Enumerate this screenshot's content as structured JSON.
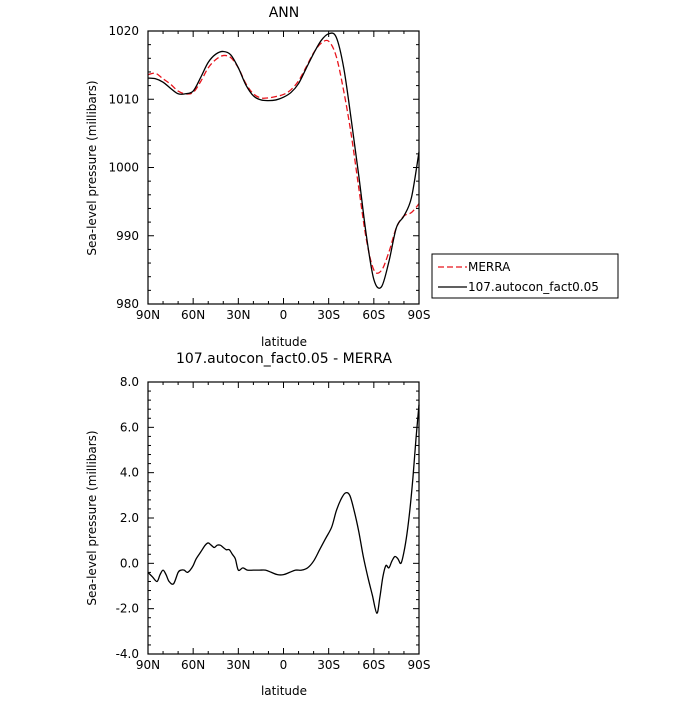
{
  "chart_data": [
    {
      "type": "line",
      "title": "ANN",
      "xlabel": "latitude",
      "ylabel": "Sea-level pressure (millibars)",
      "x_ticks": [
        {
          "value": 90,
          "label": "90N"
        },
        {
          "value": 60,
          "label": "60N"
        },
        {
          "value": 30,
          "label": "30N"
        },
        {
          "value": 0,
          "label": "0"
        },
        {
          "value": -30,
          "label": "30S"
        },
        {
          "value": -60,
          "label": "60S"
        },
        {
          "value": -90,
          "label": "90S"
        }
      ],
      "xlim": [
        90,
        -90
      ],
      "ylim": [
        980,
        1020
      ],
      "y_ticks": [
        {
          "value": 980,
          "label": "980"
        },
        {
          "value": 990,
          "label": "990"
        },
        {
          "value": 1000,
          "label": "1000"
        },
        {
          "value": 1010,
          "label": "1010"
        },
        {
          "value": 1020,
          "label": "1020"
        }
      ],
      "legend_position": "outside-right",
      "series": [
        {
          "name": "MERRA",
          "color": "#e8141c",
          "dash": "dashed",
          "x": [
            90,
            85,
            80,
            75,
            70,
            65,
            60,
            55,
            50,
            45,
            40,
            35,
            30,
            25,
            20,
            15,
            10,
            5,
            0,
            -5,
            -10,
            -15,
            -20,
            -25,
            -30,
            -35,
            -40,
            -45,
            -50,
            -55,
            -60,
            -65,
            -70,
            -75,
            -80,
            -85,
            -90
          ],
          "y": [
            1013.6,
            1013.8,
            1013.0,
            1012.2,
            1011.2,
            1010.8,
            1011.0,
            1012.6,
            1014.6,
            1015.8,
            1016.4,
            1016.1,
            1014.6,
            1012.3,
            1010.8,
            1010.2,
            1010.2,
            1010.4,
            1010.7,
            1011.4,
            1012.7,
            1014.7,
            1016.8,
            1018.2,
            1018.5,
            1016.3,
            1011.2,
            1004.8,
            997.0,
            989.5,
            985.0,
            984.9,
            987.6,
            991.2,
            992.9,
            993.4,
            994.7
          ]
        },
        {
          "name": "107.autocon_fact0.05",
          "color": "#000000",
          "dash": "solid",
          "x": [
            90,
            85,
            80,
            75,
            70,
            65,
            60,
            55,
            50,
            45,
            40,
            35,
            30,
            25,
            20,
            15,
            10,
            5,
            0,
            -5,
            -10,
            -15,
            -20,
            -25,
            -30,
            -35,
            -40,
            -45,
            -50,
            -55,
            -60,
            -65,
            -70,
            -75,
            -80,
            -85,
            -90
          ],
          "y": [
            1013.1,
            1013.0,
            1012.5,
            1011.6,
            1010.8,
            1010.8,
            1011.2,
            1013.2,
            1015.4,
            1016.6,
            1017.0,
            1016.5,
            1014.6,
            1012.1,
            1010.5,
            1009.9,
            1009.8,
            1009.9,
            1010.3,
            1011.0,
            1012.3,
            1014.5,
            1016.7,
            1018.6,
            1019.6,
            1019.1,
            1014.6,
            1007.0,
            998.8,
            990.1,
            983.6,
            982.5,
            986.2,
            991.2,
            992.9,
            995.6,
            1002.3
          ]
        }
      ]
    },
    {
      "type": "line",
      "title": "107.autocon_fact0.05 - MERRA",
      "xlabel": "latitude",
      "ylabel": "Sea-level pressure (millibars)",
      "x_ticks": [
        {
          "value": 90,
          "label": "90N"
        },
        {
          "value": 60,
          "label": "60N"
        },
        {
          "value": 30,
          "label": "30N"
        },
        {
          "value": 0,
          "label": "0"
        },
        {
          "value": -30,
          "label": "30S"
        },
        {
          "value": -60,
          "label": "60S"
        },
        {
          "value": -90,
          "label": "90S"
        }
      ],
      "xlim": [
        90,
        -90
      ],
      "ylim": [
        -4,
        8
      ],
      "y_ticks": [
        {
          "value": -4,
          "label": "-4.0"
        },
        {
          "value": -2,
          "label": "-2.0"
        },
        {
          "value": 0,
          "label": "0.0"
        },
        {
          "value": 2,
          "label": "2.0"
        },
        {
          "value": 4,
          "label": "4.0"
        },
        {
          "value": 6,
          "label": "6.0"
        },
        {
          "value": 8,
          "label": "8.0"
        }
      ],
      "series": [
        {
          "color": "#000000",
          "dash": "solid",
          "x": [
            90,
            87,
            84,
            82,
            80,
            78,
            76,
            73,
            70,
            68,
            66,
            64,
            62,
            60,
            58,
            55,
            52,
            50,
            48,
            46,
            44,
            42,
            40,
            38,
            36,
            34,
            32,
            30,
            27,
            24,
            20,
            16,
            12,
            8,
            4,
            0,
            -4,
            -8,
            -12,
            -16,
            -20,
            -24,
            -28,
            -32,
            -35,
            -38,
            -41,
            -44,
            -47,
            -50,
            -53,
            -56,
            -59,
            -62,
            -64,
            -66,
            -68,
            -70,
            -72,
            -74,
            -76,
            -78,
            -80,
            -82,
            -84,
            -86,
            -88,
            -90
          ],
          "y": [
            -0.4,
            -0.6,
            -0.8,
            -0.5,
            -0.3,
            -0.5,
            -0.8,
            -0.9,
            -0.4,
            -0.3,
            -0.3,
            -0.4,
            -0.3,
            -0.1,
            0.2,
            0.5,
            0.8,
            0.9,
            0.8,
            0.7,
            0.8,
            0.8,
            0.7,
            0.6,
            0.6,
            0.4,
            0.2,
            -0.3,
            -0.2,
            -0.3,
            -0.3,
            -0.3,
            -0.3,
            -0.4,
            -0.5,
            -0.5,
            -0.4,
            -0.3,
            -0.3,
            -0.2,
            0.1,
            0.6,
            1.1,
            1.6,
            2.3,
            2.8,
            3.1,
            3.0,
            2.3,
            1.4,
            0.3,
            -0.6,
            -1.4,
            -2.2,
            -1.5,
            -0.6,
            -0.1,
            -0.2,
            0.1,
            0.3,
            0.2,
            0.0,
            0.5,
            1.3,
            2.4,
            3.8,
            5.5,
            7.0
          ]
        }
      ]
    }
  ]
}
